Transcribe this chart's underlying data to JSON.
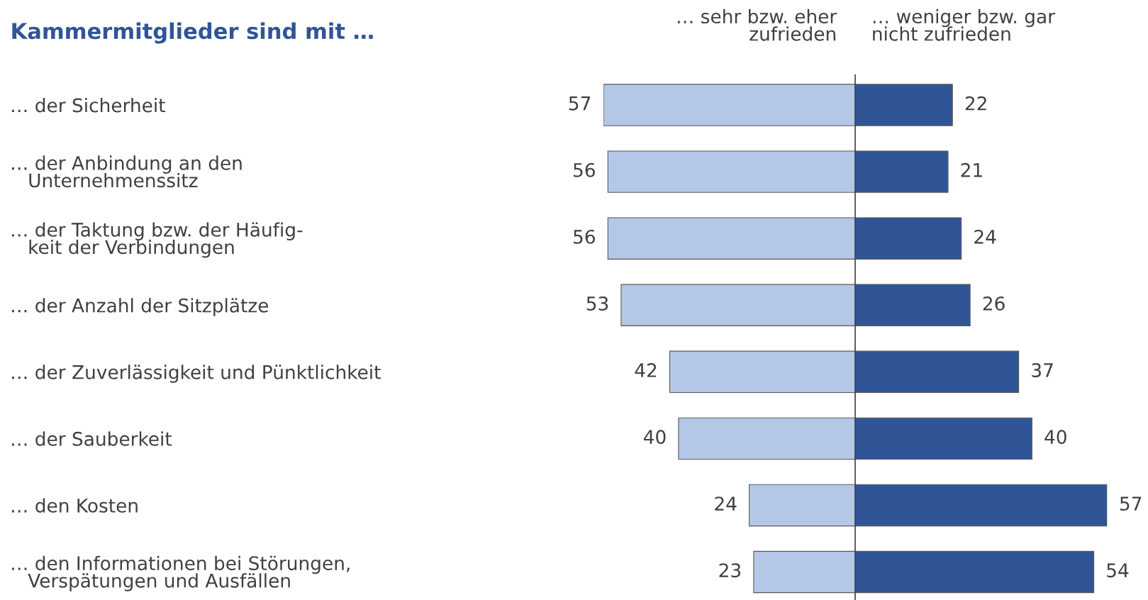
{
  "chart_data": [
    {
      "type": "bar",
      "orientation": "horizontal",
      "title": "Kammermitglieder sind mit …",
      "subtitle": "… sehr bzw. eher\nzufrieden",
      "categories": [
        "… der Sicherheit",
        "… der Anbindung an den\n   Unternehmenssitz",
        "… der Taktung bzw. der Häufig-\n   keit der Verbindungen",
        "… der Anzahl der Sitzplätze",
        "… der Zuverlässigkeit und Pünktlichkeit",
        "… der Sauberkeit",
        "… den Kosten",
        "… den Informationen bei Störungen,\n   Verspätungen und Ausfällen"
      ],
      "values": [
        57,
        56,
        56,
        53,
        42,
        40,
        24,
        23
      ],
      "color": "#b4c7e7",
      "data_labels": true,
      "xlim": [
        57,
        0
      ]
    },
    {
      "type": "bar",
      "orientation": "horizontal",
      "subtitle": "… weniger bzw. gar\nnicht zufrieden",
      "categories": [
        null,
        null,
        null,
        null,
        null,
        null,
        null,
        null
      ],
      "values": [
        22,
        21,
        24,
        26,
        37,
        40,
        57,
        54
      ],
      "color": "#2f5597",
      "data_labels": true,
      "xlim": [
        0,
        57
      ]
    }
  ]
}
